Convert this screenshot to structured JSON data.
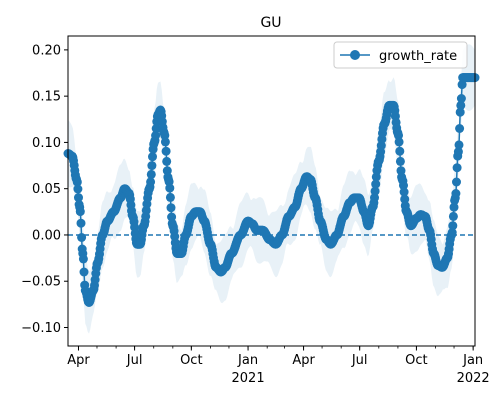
{
  "chart_data": {
    "type": "line",
    "title": "GU",
    "xlabel": "",
    "ylabel": "",
    "x_start": "2020-03-15",
    "x_end": "2022-01-04",
    "ylim": [
      -0.12,
      0.215
    ],
    "y_ticks": [
      -0.1,
      -0.05,
      0.0,
      0.05,
      0.1,
      0.15,
      0.2
    ],
    "y_tick_labels": [
      "−0.10",
      "−0.05",
      "0.00",
      "0.05",
      "0.10",
      "0.15",
      "0.20"
    ],
    "x_ticks": [
      {
        "date": "2020-04-01",
        "label": "Apr",
        "sub": ""
      },
      {
        "date": "2020-07-01",
        "label": "Jul",
        "sub": ""
      },
      {
        "date": "2020-10-01",
        "label": "Oct",
        "sub": ""
      },
      {
        "date": "2021-01-01",
        "label": "Jan",
        "sub": "2021"
      },
      {
        "date": "2021-04-01",
        "label": "Apr",
        "sub": ""
      },
      {
        "date": "2021-07-01",
        "label": "Jul",
        "sub": ""
      },
      {
        "date": "2021-10-01",
        "label": "Oct",
        "sub": ""
      },
      {
        "date": "2022-01-01",
        "label": "Jan",
        "sub": "2022"
      }
    ],
    "reference_line": 0.0,
    "legend": {
      "position": "top-right",
      "entries": [
        "growth_rate"
      ]
    },
    "colors": {
      "series": "#1f77b4",
      "band": "#1f77b4"
    },
    "series": [
      {
        "name": "growth_rate",
        "keypoints": [
          [
            "2020-03-15",
            0.088
          ],
          [
            "2020-03-22",
            0.085
          ],
          [
            "2020-03-29",
            0.06
          ],
          [
            "2020-04-03",
            0.03
          ],
          [
            "2020-04-08",
            -0.02
          ],
          [
            "2020-04-12",
            -0.06
          ],
          [
            "2020-04-18",
            -0.073
          ],
          [
            "2020-04-25",
            -0.06
          ],
          [
            "2020-05-02",
            -0.03
          ],
          [
            "2020-05-10",
            0.0
          ],
          [
            "2020-05-18",
            0.015
          ],
          [
            "2020-05-28",
            0.025
          ],
          [
            "2020-06-08",
            0.04
          ],
          [
            "2020-06-15",
            0.05
          ],
          [
            "2020-06-22",
            0.045
          ],
          [
            "2020-06-28",
            0.02
          ],
          [
            "2020-07-05",
            -0.01
          ],
          [
            "2020-07-10",
            -0.01
          ],
          [
            "2020-07-16",
            0.01
          ],
          [
            "2020-07-25",
            0.05
          ],
          [
            "2020-08-02",
            0.1
          ],
          [
            "2020-08-08",
            0.13
          ],
          [
            "2020-08-12",
            0.135
          ],
          [
            "2020-08-18",
            0.11
          ],
          [
            "2020-08-25",
            0.06
          ],
          [
            "2020-09-01",
            0.01
          ],
          [
            "2020-09-08",
            -0.02
          ],
          [
            "2020-09-15",
            -0.02
          ],
          [
            "2020-09-22",
            0.0
          ],
          [
            "2020-10-01",
            0.02
          ],
          [
            "2020-10-08",
            0.025
          ],
          [
            "2020-10-15",
            0.025
          ],
          [
            "2020-10-22",
            0.015
          ],
          [
            "2020-11-01",
            -0.01
          ],
          [
            "2020-11-10",
            -0.035
          ],
          [
            "2020-11-18",
            -0.04
          ],
          [
            "2020-11-25",
            -0.035
          ],
          [
            "2020-12-05",
            -0.02
          ],
          [
            "2020-12-20",
            0.0
          ],
          [
            "2021-01-01",
            0.015
          ],
          [
            "2021-01-08",
            0.012
          ],
          [
            "2021-01-15",
            0.005
          ],
          [
            "2021-01-25",
            0.005
          ],
          [
            "2021-02-05",
            -0.005
          ],
          [
            "2021-02-15",
            -0.01
          ],
          [
            "2021-02-25",
            0.0
          ],
          [
            "2021-03-08",
            0.02
          ],
          [
            "2021-03-18",
            0.03
          ],
          [
            "2021-03-28",
            0.05
          ],
          [
            "2021-04-06",
            0.063
          ],
          [
            "2021-04-12",
            0.06
          ],
          [
            "2021-04-20",
            0.04
          ],
          [
            "2021-04-28",
            0.015
          ],
          [
            "2021-05-08",
            -0.005
          ],
          [
            "2021-05-15",
            -0.01
          ],
          [
            "2021-05-25",
            0.0
          ],
          [
            "2021-06-05",
            0.02
          ],
          [
            "2021-06-15",
            0.035
          ],
          [
            "2021-06-22",
            0.04
          ],
          [
            "2021-06-30",
            0.04
          ],
          [
            "2021-07-08",
            0.025
          ],
          [
            "2021-07-15",
            0.01
          ],
          [
            "2021-07-22",
            0.03
          ],
          [
            "2021-08-01",
            0.08
          ],
          [
            "2021-08-10",
            0.12
          ],
          [
            "2021-08-18",
            0.14
          ],
          [
            "2021-08-25",
            0.14
          ],
          [
            "2021-09-01",
            0.11
          ],
          [
            "2021-09-08",
            0.06
          ],
          [
            "2021-09-15",
            0.025
          ],
          [
            "2021-09-22",
            0.01
          ],
          [
            "2021-10-01",
            0.018
          ],
          [
            "2021-10-08",
            0.022
          ],
          [
            "2021-10-15",
            0.02
          ],
          [
            "2021-10-22",
            0.005
          ],
          [
            "2021-10-29",
            -0.02
          ],
          [
            "2021-11-05",
            -0.033
          ],
          [
            "2021-11-12",
            -0.035
          ],
          [
            "2021-11-20",
            -0.025
          ],
          [
            "2021-11-27",
            0.0
          ],
          [
            "2021-12-03",
            0.04
          ],
          [
            "2021-12-08",
            0.09
          ],
          [
            "2021-12-12",
            0.14
          ],
          [
            "2021-12-15",
            0.17
          ],
          [
            "2022-01-04",
            0.17
          ]
        ],
        "band_halfwidth": 0.03
      }
    ]
  }
}
